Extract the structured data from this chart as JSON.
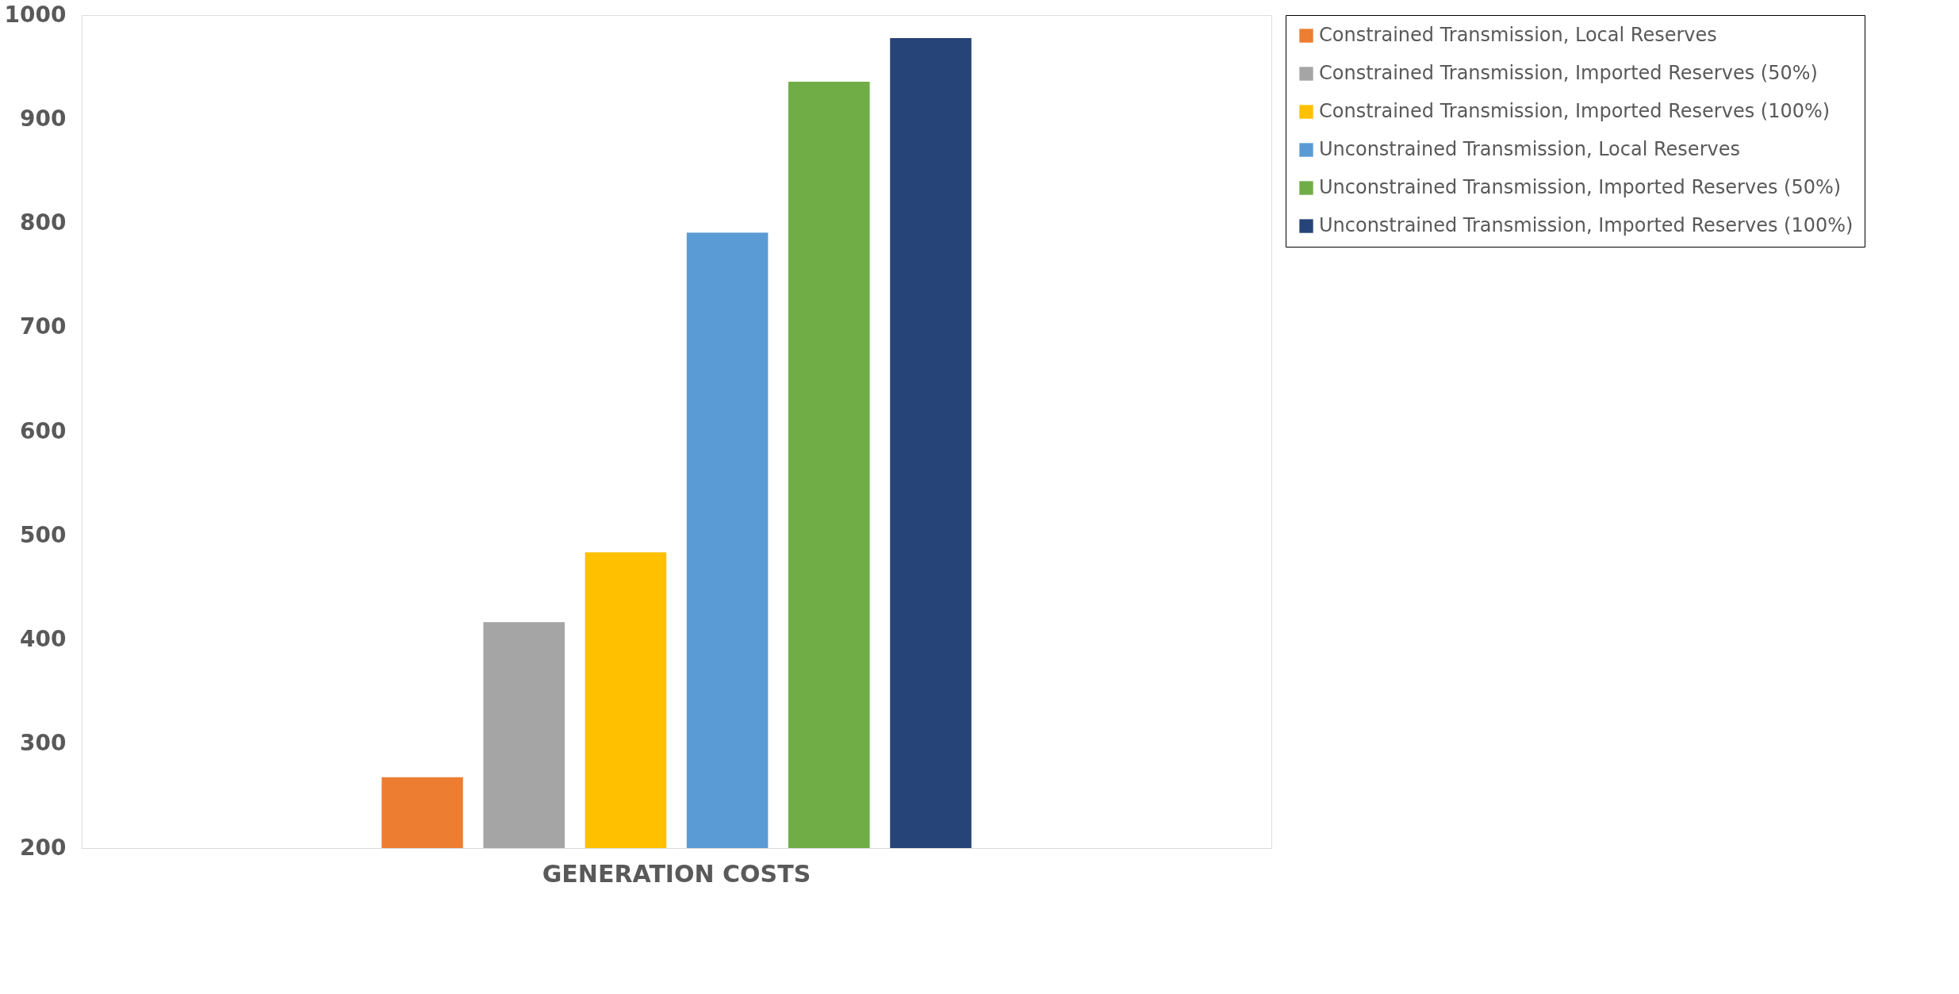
{
  "chart_data": {
    "type": "bar",
    "categories": [
      "GENERATION COSTS"
    ],
    "series": [
      {
        "name": "Constrained Transmission, Local Reserves",
        "color": "#ed7d31",
        "values": [
          268
        ]
      },
      {
        "name": "Constrained Transmission, Imported Reserves (50%)",
        "color": "#a5a5a5",
        "values": [
          417
        ]
      },
      {
        "name": "Constrained Transmission, Imported Reserves (100%)",
        "color": "#ffc000",
        "values": [
          484
        ]
      },
      {
        "name": "Unconstrained Transmission, Local Reserves",
        "color": "#5b9bd5",
        "values": [
          791
        ]
      },
      {
        "name": "Unconstrained Transmission, Imported Reserves (50%)",
        "color": "#70ad47",
        "values": [
          936
        ]
      },
      {
        "name": "Unconstrained Transmission, Imported Reserves (100%)",
        "color": "#264478",
        "values": [
          978
        ]
      }
    ],
    "ylim": [
      200,
      1000
    ],
    "yticks": [
      200,
      300,
      400,
      500,
      600,
      700,
      800,
      900,
      1000
    ],
    "grid": false,
    "legend": "right"
  }
}
